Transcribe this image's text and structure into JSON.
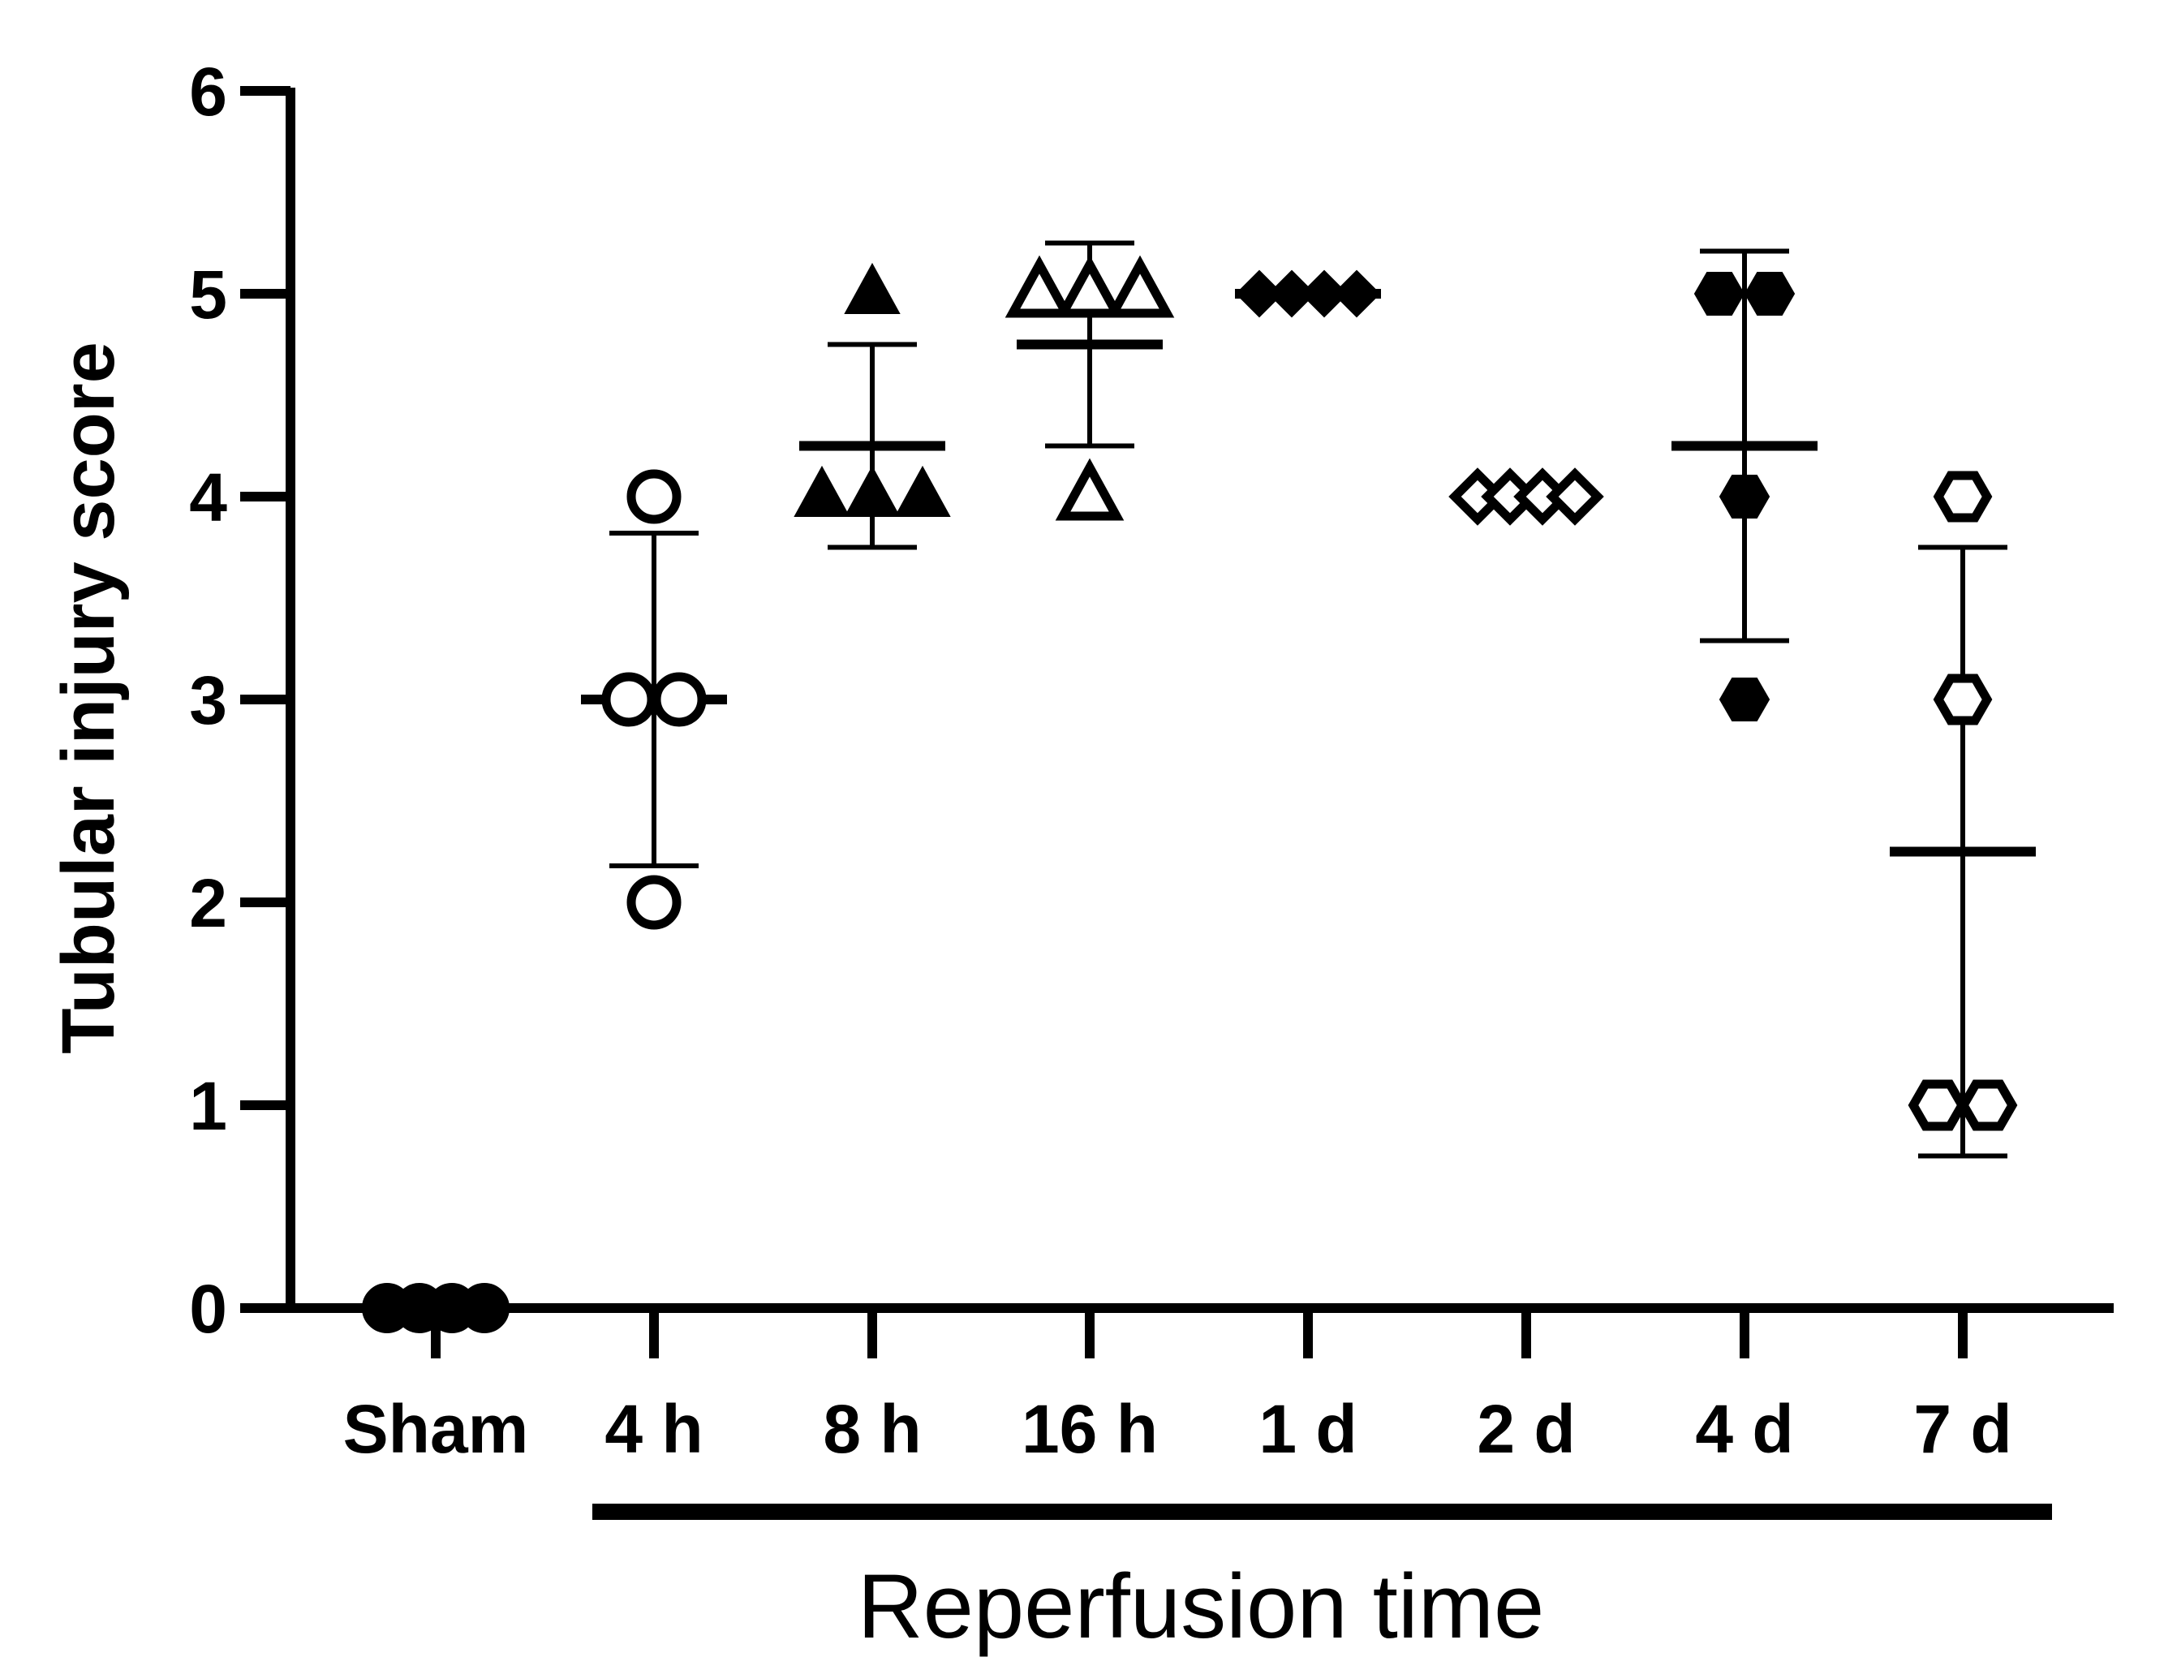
{
  "chart_data": {
    "type": "scatter",
    "ylabel": "Tubular injury score",
    "xlabel": "Reperfusion time",
    "ylim": [
      0,
      6
    ],
    "yticks": [
      "0",
      "1",
      "2",
      "3",
      "4",
      "5",
      "6"
    ],
    "categories": [
      "Sham",
      "4 h",
      "8 h",
      "16 h",
      "1 d",
      "2 d",
      "4 d",
      "7 d"
    ],
    "bracket_categories": [
      "4 h",
      "8 h",
      "16 h",
      "1 d",
      "2 d",
      "4 d",
      "7 d"
    ],
    "grid": false,
    "legend": "none",
    "color": "#000000",
    "series": [
      {
        "category": "Sham",
        "marker": "circle",
        "fill": "filled",
        "values": [
          0,
          0,
          0,
          0
        ],
        "mean": 0,
        "sd": 0
      },
      {
        "category": "4 h",
        "marker": "circle",
        "fill": "open",
        "values": [
          4,
          3,
          3,
          2
        ],
        "mean": 3,
        "sd": 0.82
      },
      {
        "category": "8 h",
        "marker": "triangle",
        "fill": "filled",
        "values": [
          5,
          4,
          4,
          4
        ],
        "mean": 4.25,
        "sd": 0.5
      },
      {
        "category": "16 h",
        "marker": "triangle",
        "fill": "open",
        "values": [
          5,
          5,
          5,
          4
        ],
        "mean": 4.75,
        "sd": 0.5
      },
      {
        "category": "1 d",
        "marker": "diamond",
        "fill": "filled",
        "values": [
          5,
          5,
          5,
          5
        ],
        "mean": 5,
        "sd": 0
      },
      {
        "category": "2 d",
        "marker": "diamond",
        "fill": "open",
        "values": [
          4,
          4,
          4,
          4
        ],
        "mean": 4,
        "sd": 0
      },
      {
        "category": "4 d",
        "marker": "hexagon",
        "fill": "filled",
        "values": [
          5,
          5,
          4,
          3
        ],
        "mean": 4.25,
        "sd": 0.96
      },
      {
        "category": "7 d",
        "marker": "hexagon",
        "fill": "open",
        "values": [
          4,
          3,
          1,
          1
        ],
        "mean": 2.25,
        "sd": 1.5
      }
    ]
  }
}
